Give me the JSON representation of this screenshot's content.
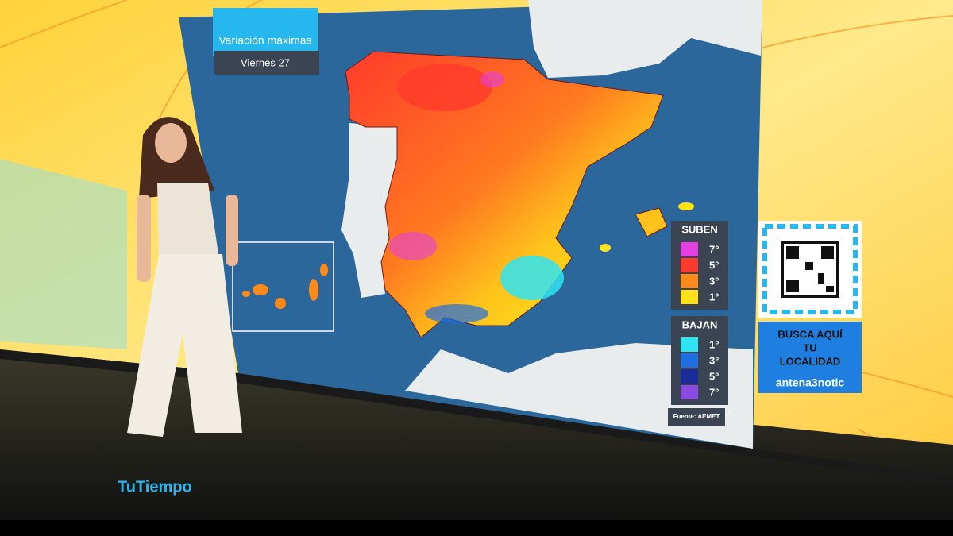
{
  "header": {
    "title": "Variación máximas",
    "subtitle": "Viernes 27"
  },
  "legend": {
    "rise": {
      "title": "SUBEN",
      "items": [
        {
          "label": "7°",
          "color": "#e43fe0"
        },
        {
          "label": "5°",
          "color": "#ff3b2b"
        },
        {
          "label": "3°",
          "color": "#ff8a1c"
        },
        {
          "label": "1°",
          "color": "#ffe21a"
        }
      ]
    },
    "fall": {
      "title": "BAJAN",
      "items": [
        {
          "label": "1°",
          "color": "#2fe3f2"
        },
        {
          "label": "3°",
          "color": "#1f6fe0"
        },
        {
          "label": "5°",
          "color": "#1b2c9a"
        },
        {
          "label": "7°",
          "color": "#8b4be2"
        }
      ]
    },
    "source": "Fuente: AEMET"
  },
  "promo": {
    "lines": [
      "BUSCA AQUÍ",
      "TU",
      "LOCALIDAD"
    ],
    "handle": "antena3notic"
  },
  "brand": "TuTiempo"
}
